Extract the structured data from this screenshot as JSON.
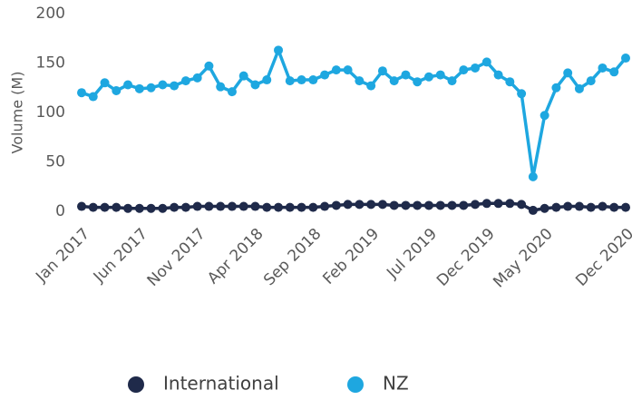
{
  "chart_data": {
    "type": "line",
    "y_label": "Volume (M)",
    "categories": [
      "Jan 2017",
      null,
      null,
      null,
      null,
      "Jun 2017",
      null,
      null,
      null,
      null,
      "Nov 2017",
      null,
      null,
      null,
      null,
      "Apr 2018",
      null,
      null,
      null,
      null,
      "Sep 2018",
      null,
      null,
      null,
      null,
      "Feb 2019",
      null,
      null,
      null,
      null,
      "Jul 2019",
      null,
      null,
      null,
      null,
      "Dec 2019",
      null,
      null,
      null,
      null,
      "May 2020",
      null,
      null,
      null,
      null,
      null,
      null,
      "Dec 2020"
    ],
    "series": [
      {
        "name": "International",
        "color": "#1f2a4a",
        "values": [
          5,
          4,
          4,
          4,
          3,
          3,
          3,
          3,
          4,
          4,
          5,
          5,
          5,
          5,
          5,
          5,
          4,
          4,
          4,
          4,
          4,
          5,
          6,
          7,
          7,
          7,
          7,
          6,
          6,
          6,
          6,
          6,
          6,
          6,
          7,
          8,
          8,
          8,
          7,
          1,
          3,
          4,
          5,
          5,
          4,
          5,
          4,
          4
        ]
      },
      {
        "name": "NZ",
        "color": "#1ea7e0",
        "values": [
          120,
          116,
          130,
          122,
          128,
          124,
          125,
          128,
          127,
          132,
          135,
          147,
          126,
          121,
          137,
          128,
          133,
          163,
          132,
          133,
          133,
          138,
          143,
          143,
          132,
          127,
          142,
          132,
          138,
          131,
          136,
          138,
          132,
          143,
          145,
          151,
          138,
          131,
          119,
          35,
          97,
          125,
          140,
          124,
          132,
          145,
          141,
          155
        ]
      }
    ],
    "ylim": [
      0,
      200
    ],
    "yticks": [
      0,
      50,
      100,
      150,
      200
    ],
    "grid": false
  }
}
